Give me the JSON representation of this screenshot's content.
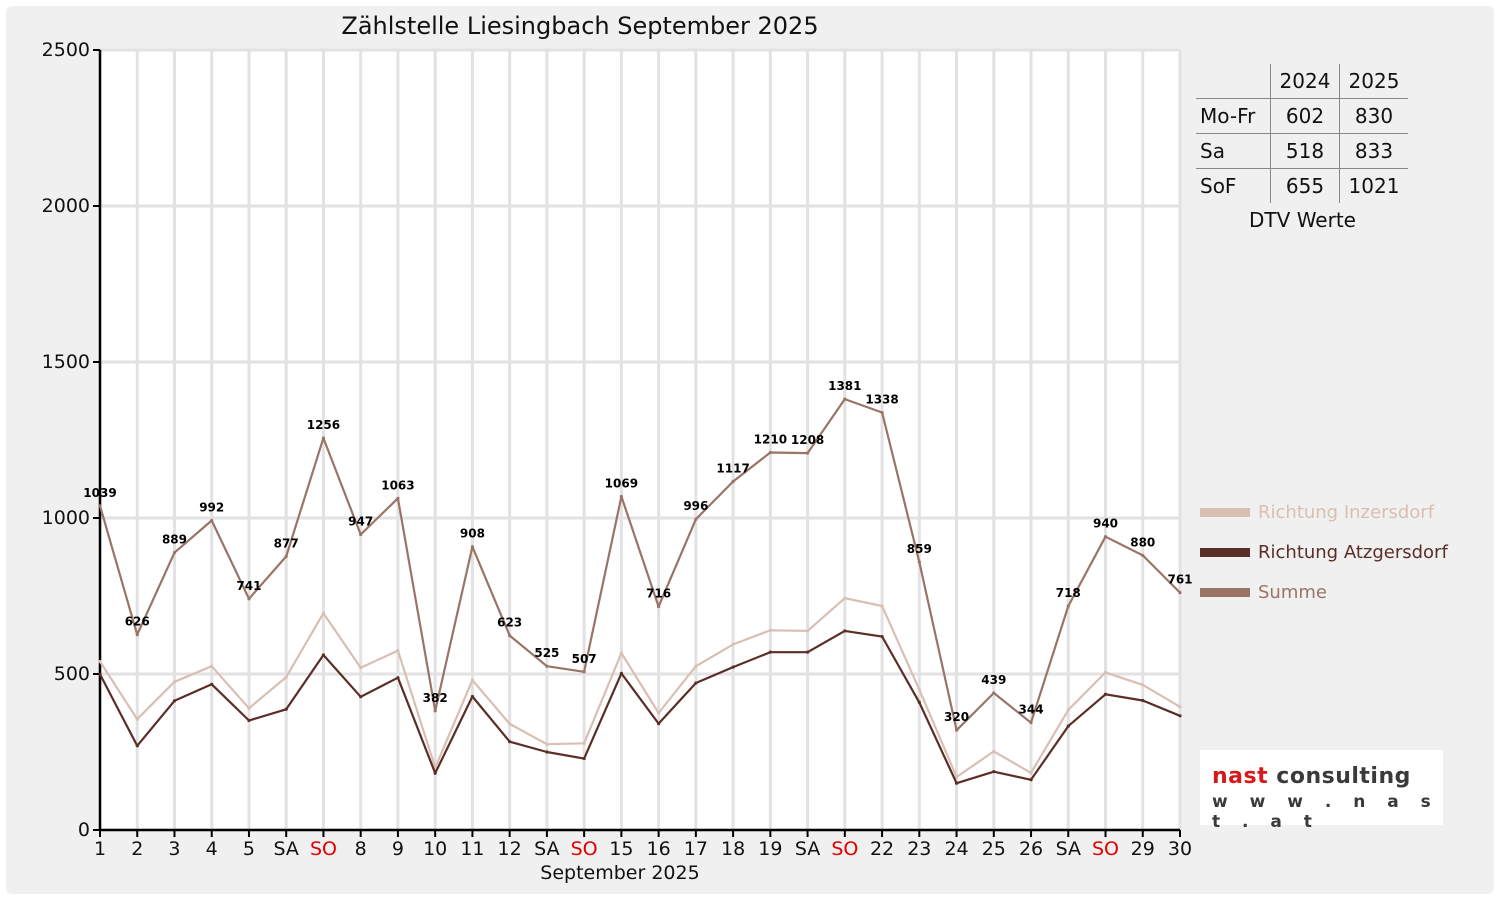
{
  "chart_data": {
    "type": "line",
    "title": "Zählstelle Liesingbach September 2025",
    "xlabel": "September 2025",
    "ylabel": "",
    "ylim": [
      0,
      2500
    ],
    "yticks": [
      0,
      500,
      1000,
      1500,
      2000,
      2500
    ],
    "grid": true,
    "legend_position": "right",
    "categories": [
      "1",
      "2",
      "3",
      "4",
      "5",
      "SA",
      "SO",
      "8",
      "9",
      "10",
      "11",
      "12",
      "SA",
      "SO",
      "15",
      "16",
      "17",
      "18",
      "19",
      "SA",
      "SO",
      "22",
      "23",
      "24",
      "25",
      "26",
      "SA",
      "SO",
      "29",
      "30"
    ],
    "weekend_color": "#e00000",
    "series": [
      {
        "name": "Richtung Inzersdorf",
        "color": "#d9bfb3",
        "values": [
          540,
          355,
          475,
          525,
          390,
          490,
          695,
          520,
          575,
          200,
          480,
          340,
          275,
          278,
          567,
          375,
          525,
          595,
          640,
          638,
          743,
          718,
          450,
          170,
          252,
          183,
          385,
          505,
          465,
          395
        ]
      },
      {
        "name": "Richtung Atzgersdorf",
        "color": "#5a2e26",
        "values": [
          499,
          270,
          414,
          467,
          351,
          387,
          561,
          427,
          488,
          182,
          428,
          283,
          250,
          229,
          502,
          341,
          471,
          522,
          570,
          570,
          638,
          620,
          409,
          150,
          187,
          161,
          333,
          435,
          415,
          366
        ]
      },
      {
        "name": "Summe",
        "color": "#9a7466",
        "labeled": true,
        "values": [
          1039,
          626,
          889,
          992,
          741,
          877,
          1256,
          947,
          1063,
          382,
          908,
          623,
          525,
          507,
          1069,
          716,
          996,
          1117,
          1210,
          1208,
          1381,
          1338,
          859,
          320,
          439,
          344,
          718,
          940,
          880,
          761
        ]
      }
    ]
  },
  "dtv_table": {
    "header": [
      "2024",
      "2025"
    ],
    "rows": [
      {
        "label": "Mo-Fr",
        "v2024": "602",
        "v2025": "830"
      },
      {
        "label": "Sa",
        "v2024": "518",
        "v2025": "833"
      },
      {
        "label": "SoF",
        "v2024": "655",
        "v2025": "1021"
      }
    ],
    "caption": "DTV Werte"
  },
  "logo": {
    "brand_part1": "nast",
    "brand_part2": " consulting",
    "url": "w w w . n a s t . a t"
  }
}
